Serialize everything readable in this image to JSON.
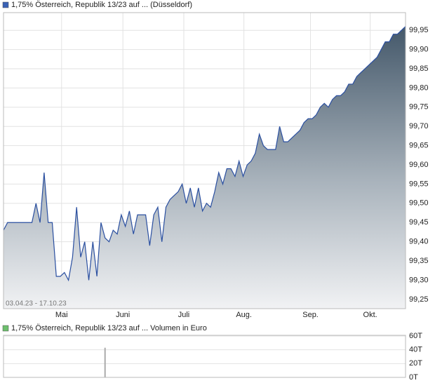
{
  "chart_data": [
    {
      "type": "area",
      "title": "1,75% Österreich, Republik 13/23 auf ... (Düsseldorf)",
      "date_range": "03.04.23 - 17.10.23",
      "legend_color": "#3a62b5",
      "color": "#2a4fa0",
      "values": [
        99.43,
        99.45,
        99.45,
        99.45,
        99.45,
        99.45,
        99.45,
        99.45,
        99.5,
        99.45,
        99.58,
        99.45,
        99.45,
        99.31,
        99.31,
        99.32,
        99.3,
        99.36,
        99.49,
        99.36,
        99.4,
        99.3,
        99.4,
        99.31,
        99.45,
        99.41,
        99.4,
        99.43,
        99.42,
        99.47,
        99.44,
        99.48,
        99.42,
        99.47,
        99.47,
        99.47,
        99.39,
        99.47,
        99.49,
        99.4,
        99.49,
        99.51,
        99.52,
        99.53,
        99.55,
        99.5,
        99.54,
        99.49,
        99.54,
        99.48,
        99.5,
        99.49,
        99.53,
        99.58,
        99.55,
        99.59,
        99.59,
        99.57,
        99.61,
        99.57,
        99.6,
        99.61,
        99.63,
        99.68,
        99.65,
        99.64,
        99.64,
        99.64,
        99.7,
        99.66,
        99.66,
        99.67,
        99.68,
        99.69,
        99.71,
        99.72,
        99.72,
        99.73,
        99.75,
        99.76,
        99.75,
        99.77,
        99.78,
        99.78,
        99.79,
        99.81,
        99.81,
        99.83,
        99.84,
        99.85,
        99.86,
        99.87,
        99.88,
        99.9,
        99.92,
        99.92,
        99.94,
        99.94,
        99.95,
        99.96
      ],
      "xlim": [
        0,
        99
      ],
      "xticks": [
        {
          "value": 14.3,
          "label": "Mai"
        },
        {
          "value": 29.4,
          "label": "Juni"
        },
        {
          "value": 44.4,
          "label": "Juli"
        },
        {
          "value": 59.2,
          "label": "Aug."
        },
        {
          "value": 75.6,
          "label": "Sep."
        },
        {
          "value": 90.3,
          "label": "Okt."
        }
      ],
      "ylim": [
        99.226,
        99.996
      ],
      "yticks": [
        {
          "value": 99.25,
          "label": "99,25"
        },
        {
          "value": 99.3,
          "label": "99,30"
        },
        {
          "value": 99.35,
          "label": "99,35"
        },
        {
          "value": 99.4,
          "label": "99,40"
        },
        {
          "value": 99.45,
          "label": "99,45"
        },
        {
          "value": 99.5,
          "label": "99,50"
        },
        {
          "value": 99.55,
          "label": "99,55"
        },
        {
          "value": 99.6,
          "label": "99,60"
        },
        {
          "value": 99.65,
          "label": "99,65"
        },
        {
          "value": 99.7,
          "label": "99,70"
        },
        {
          "value": 99.75,
          "label": "99,75"
        },
        {
          "value": 99.8,
          "label": "99,80"
        },
        {
          "value": 99.85,
          "label": "99,85"
        },
        {
          "value": 99.9,
          "label": "99,90"
        },
        {
          "value": 99.95,
          "label": "99,95"
        }
      ],
      "grid": true
    },
    {
      "type": "bar",
      "title": "1,75% Österreich, Republik 13/23 auf ... Volumen in Euro",
      "legend_color": "#6dbf6d",
      "color": "#aaaaaa",
      "values": [
        0,
        0,
        0,
        0,
        0,
        0,
        0,
        0,
        0,
        0,
        0,
        0,
        0,
        0,
        0,
        0,
        0,
        0,
        0,
        0,
        0,
        0,
        0,
        0,
        0,
        43,
        0,
        0,
        0,
        0,
        0,
        0,
        0,
        0,
        0,
        0,
        0,
        0,
        0,
        0,
        0,
        0,
        0,
        0,
        0,
        0,
        0,
        0,
        0,
        0,
        0,
        0,
        0,
        0,
        0,
        0,
        0,
        0,
        0,
        0,
        0,
        0,
        0,
        0,
        0,
        0,
        0,
        0,
        0,
        0,
        0,
        0,
        0,
        0,
        0,
        0,
        0,
        0,
        0,
        0,
        0,
        0,
        0,
        0,
        0,
        0,
        0,
        0,
        0,
        0,
        0,
        0,
        0,
        0,
        0,
        0,
        0,
        0,
        0,
        0
      ],
      "xlim": [
        0,
        99
      ],
      "ylim": [
        0,
        61
      ],
      "yticks": [
        {
          "value": 0,
          "label": "0T"
        },
        {
          "value": 20,
          "label": "20T"
        },
        {
          "value": 40,
          "label": "40T"
        },
        {
          "value": 60,
          "label": "60T"
        }
      ],
      "grid": true
    }
  ]
}
